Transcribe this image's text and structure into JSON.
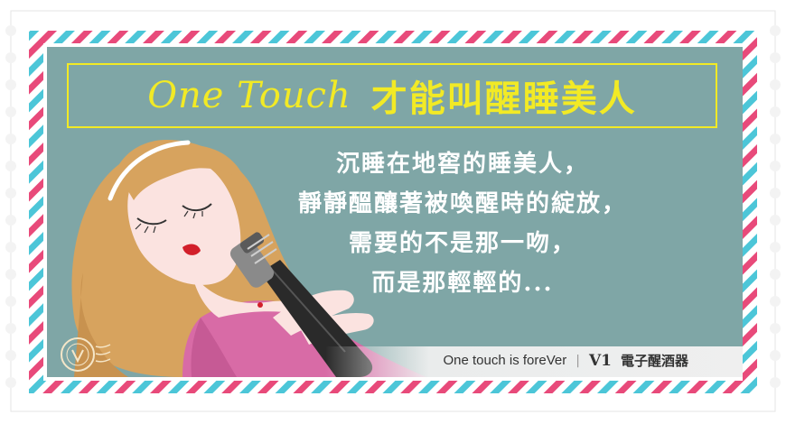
{
  "title": {
    "english": "One Touch",
    "chinese": "才能叫醒睡美人"
  },
  "verse": [
    "沉睡在地窖的睡美人，",
    "靜靜醞釀著被喚醒時的綻放，",
    "需要的不是那一吻，",
    "而是那輕輕的..."
  ],
  "footer": {
    "slogan": "One touch is foreVer",
    "separator": "|",
    "brand_mark": "V1",
    "brand_name": "電子醒酒器"
  },
  "colors": {
    "panel": "#7fa6a6",
    "title": "#f2ea25",
    "stripe_red": "#e84a7a",
    "stripe_blue": "#4cc6d8",
    "hair": "#d7a35e",
    "dress": "#d86ba6",
    "skin": "#fbe3e0"
  }
}
